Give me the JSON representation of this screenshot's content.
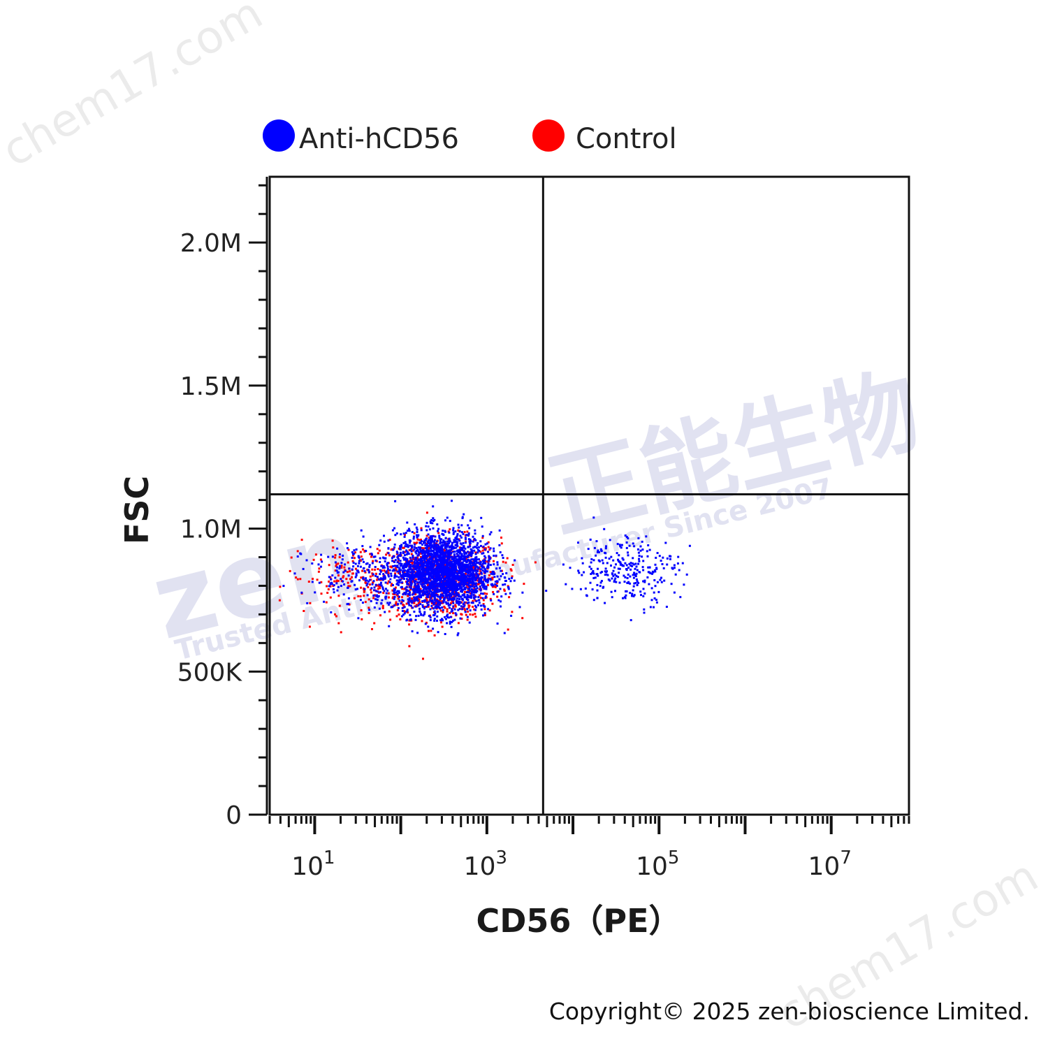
{
  "chart_data": {
    "type": "scatter",
    "xlabel": "CD56（PE）",
    "ylabel": "FSC",
    "x_scale": "log",
    "xlim": [
      3,
      80000000
    ],
    "ylim": [
      0,
      2230000
    ],
    "x_ticks": [
      {
        "base": "10",
        "exp": "1"
      },
      {
        "base": "10",
        "exp": "3"
      },
      {
        "base": "10",
        "exp": "5"
      },
      {
        "base": "10",
        "exp": "7"
      }
    ],
    "y_ticks": [
      {
        "value": 0,
        "label": "0"
      },
      {
        "value": 500000,
        "label": "500K"
      },
      {
        "value": 1000000,
        "label": "1.0M"
      },
      {
        "value": 1500000,
        "label": "1.5M"
      },
      {
        "value": 2000000,
        "label": "2.0M"
      }
    ],
    "quadrant_gates": {
      "x": 4500,
      "y": 1120000
    },
    "legend_position": "top",
    "series": [
      {
        "name": "Anti-hCD56",
        "color": "#0000ff",
        "clusters": [
          {
            "x_center": 300,
            "y_center": 850000,
            "x_spread_decades": 0.28,
            "y_spread": 70000,
            "points": 2400
          },
          {
            "x_center": 60,
            "y_center": 840000,
            "x_spread_decades": 0.45,
            "y_spread": 55000,
            "points": 300
          },
          {
            "x_center": 40000,
            "y_center": 860000,
            "x_spread_decades": 0.3,
            "y_spread": 60000,
            "points": 280
          }
        ]
      },
      {
        "name": "Control",
        "color": "#ff0000",
        "clusters": [
          {
            "x_center": 280,
            "y_center": 830000,
            "x_spread_decades": 0.35,
            "y_spread": 70000,
            "points": 900
          },
          {
            "x_center": 30,
            "y_center": 830000,
            "x_spread_decades": 0.4,
            "y_spread": 60000,
            "points": 160
          }
        ]
      }
    ]
  },
  "watermarks": {
    "brand_cn": "正能生物",
    "brand_en": "zen",
    "tagline": "Trusted Antibody Manufacturer Since 2007",
    "site": "chem17.com"
  },
  "footer": {
    "copyright": "Copyright© 2025 zen-bioscience Limited."
  }
}
